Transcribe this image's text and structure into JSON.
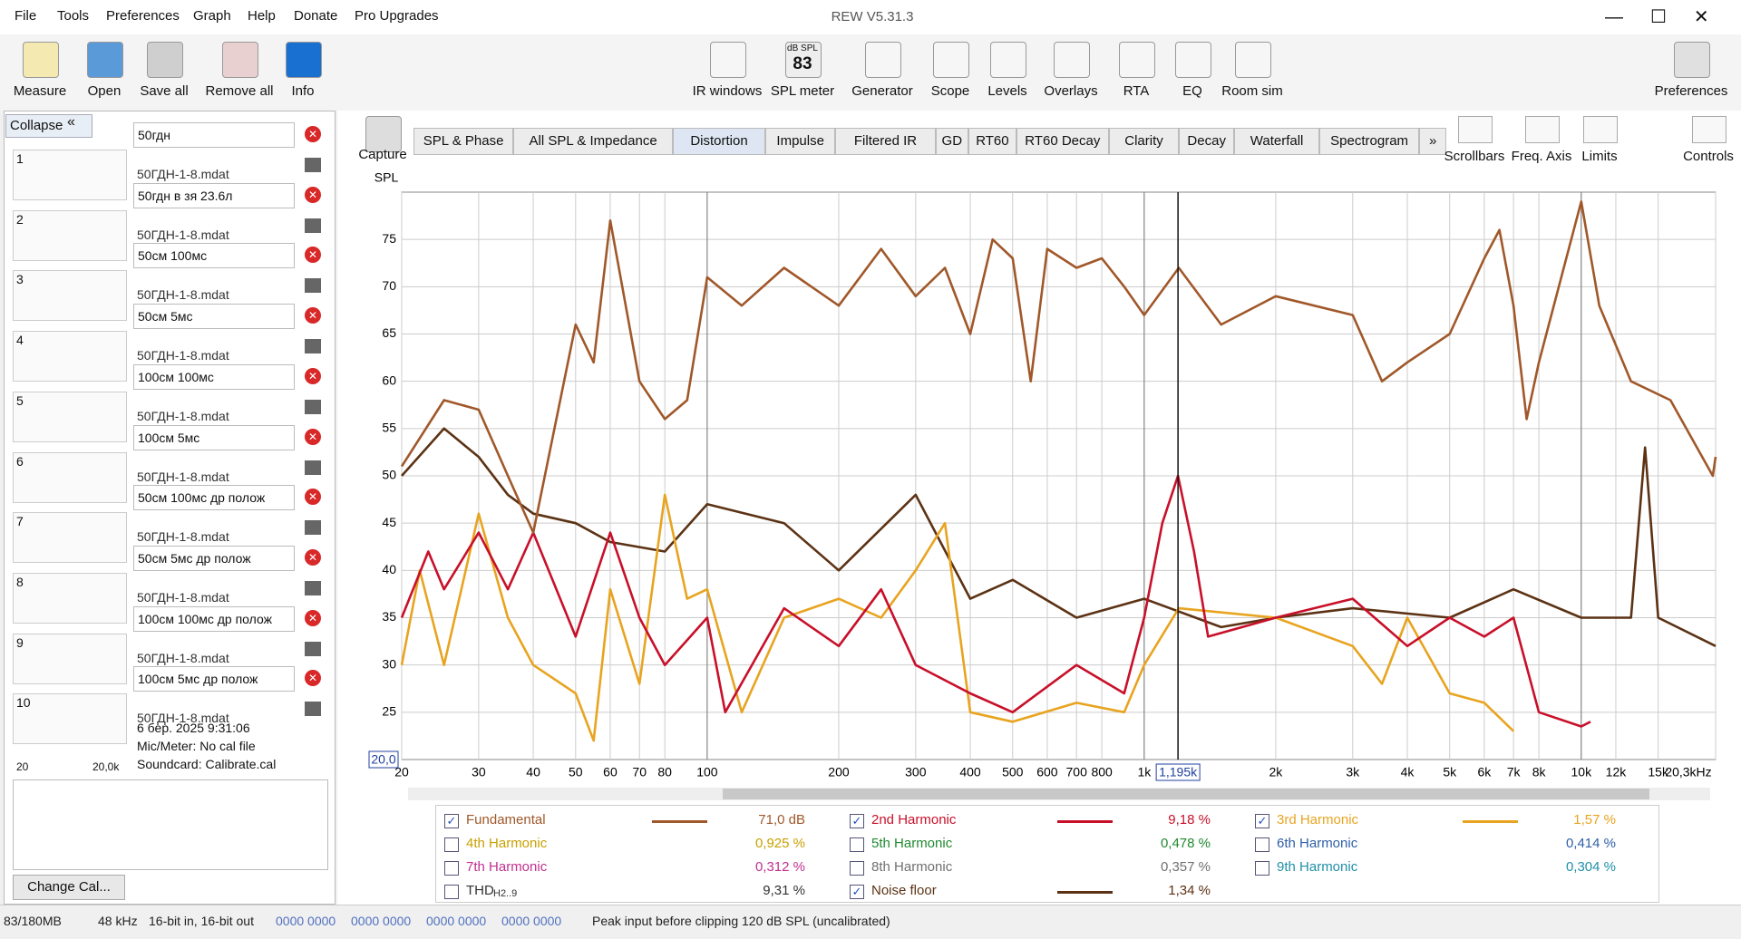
{
  "window": {
    "title": "REW V5.31.3"
  },
  "menu": [
    "File",
    "Tools",
    "Preferences",
    "Graph",
    "Help",
    "Donate",
    "Pro Upgrades"
  ],
  "toolbar_left": [
    "Measure",
    "Open",
    "Save all",
    "Remove all",
    "Info"
  ],
  "toolbar_center": [
    "IR windows",
    "SPL meter",
    "Generator",
    "Scope",
    "Levels",
    "Overlays",
    "RTA",
    "EQ",
    "Room sim"
  ],
  "spl_icon": {
    "unit": "dB SPL",
    "reading": "83"
  },
  "toolbar_right": [
    "Preferences"
  ],
  "panel": {
    "collapse": "Collapse",
    "measurements": [
      {
        "number": "1",
        "name": "50гдн",
        "file": "50ГДН-1-8.mdat",
        "color": "#d02020"
      },
      {
        "number": "2",
        "name": "50гдн в зя 23.6л",
        "file": "50ГДН-1-8.mdat",
        "color": "#20a040"
      },
      {
        "number": "3",
        "name": "50см 100мс",
        "file": "50ГДН-1-8.mdat",
        "color": "#2070d0"
      },
      {
        "number": "4",
        "name": "50см 5мс",
        "file": "50ГДН-1-8.mdat",
        "color": "#e0901a"
      },
      {
        "number": "5",
        "name": "100см 100мс",
        "file": "50ГДН-1-8.mdat",
        "color": "#d0a820"
      },
      {
        "number": "6",
        "name": "100см 5мс",
        "file": "50ГДН-1-8.mdat",
        "color": "#20b090"
      },
      {
        "number": "7",
        "name": "50см 100мс др полож",
        "file": "50ГДН-1-8.mdat",
        "color": "#a040d0"
      },
      {
        "number": "8",
        "name": "50см 5мс др полож",
        "file": "50ГДН-1-8.mdat",
        "color": "#20a0c0"
      },
      {
        "number": "9",
        "name": "100см 100мс др полож",
        "file": "50ГДН-1-8.mdat",
        "color": "#7070e0"
      },
      {
        "number": "10",
        "name": "100см 5мс др полож",
        "file": "50ГДН-1-8.mdat",
        "color": "#e020c0"
      }
    ],
    "details": [
      "6 бер. 2025 9:31:06",
      "Mic/Meter: No cal file",
      "Soundcard: Calibrate.cal"
    ],
    "mini_axis": [
      "20",
      "20,0k"
    ],
    "change_cal": "Change Cal..."
  },
  "capture": "Capture",
  "tabs": [
    "SPL & Phase",
    "All SPL & Impedance",
    "Distortion",
    "Impulse",
    "Filtered IR",
    "GD",
    "RT60",
    "RT60 Decay",
    "Clarity",
    "Decay",
    "Waterfall",
    "Spectrogram"
  ],
  "active_tab": "Distortion",
  "view_tools": [
    "Scrollbars",
    "Freq. Axis",
    "Limits",
    "Controls"
  ],
  "chart_data": {
    "type": "line",
    "y_label": "SPL",
    "log_x": true,
    "grid": true,
    "ylim": [
      20,
      80
    ],
    "yticks": [
      25,
      30,
      35,
      40,
      45,
      50,
      55,
      60,
      65,
      70,
      75
    ],
    "y_min_label": "20,0",
    "xlim": [
      20,
      20300
    ],
    "xticks": [
      20,
      30,
      40,
      50,
      60,
      70,
      80,
      100,
      200,
      300,
      400,
      500,
      600,
      700,
      800,
      {
        "value": 1000,
        "label": "1k"
      },
      {
        "value": 2000,
        "label": "2k"
      },
      {
        "value": 3000,
        "label": "3k"
      },
      {
        "value": 4000,
        "label": "4k"
      },
      {
        "value": 5000,
        "label": "5k"
      },
      {
        "value": 6000,
        "label": "6k"
      },
      {
        "value": 7000,
        "label": "7k"
      },
      {
        "value": 8000,
        "label": "8k"
      },
      {
        "value": 10000,
        "label": "10k"
      },
      {
        "value": 12000,
        "label": "12k"
      },
      {
        "value": 15000,
        "label": "15k"
      },
      {
        "value": 20300,
        "label": "20,3kHz"
      }
    ],
    "major_x": [
      100,
      1000,
      10000
    ],
    "cursor": {
      "value": 1195,
      "label": "1,195k"
    },
    "series": [
      {
        "name": "Noise floor",
        "color": "#5c3214",
        "x": [
          20,
          25,
          30,
          35,
          40,
          50,
          60,
          80,
          100,
          150,
          200,
          300,
          400,
          500,
          700,
          1000,
          1500,
          2000,
          3000,
          5000,
          7000,
          10000,
          13000,
          14000,
          15000,
          20300
        ],
        "values": [
          50,
          55,
          52,
          48,
          46,
          45,
          43,
          42,
          47,
          45,
          40,
          48,
          37,
          39,
          35,
          37,
          34,
          35,
          36,
          35,
          38,
          35,
          35,
          53,
          35,
          32
        ]
      },
      {
        "name": "3rd Harmonic",
        "color": "#e8a420",
        "x": [
          20,
          22,
          25,
          30,
          35,
          40,
          50,
          55,
          60,
          70,
          80,
          90,
          100,
          120,
          150,
          200,
          250,
          300,
          350,
          400,
          500,
          700,
          900,
          1000,
          1200,
          2000,
          3000,
          3500,
          4000,
          5000,
          6000,
          7000
        ],
        "values": [
          30,
          40,
          30,
          46,
          35,
          30,
          27,
          22,
          38,
          28,
          48,
          37,
          38,
          25,
          35,
          37,
          35,
          40,
          45,
          25,
          24,
          26,
          25,
          30,
          36,
          35,
          32,
          28,
          35,
          27,
          26,
          23
        ]
      },
      {
        "name": "2nd Harmonic",
        "color": "#c8102a",
        "x": [
          20,
          23,
          25,
          30,
          35,
          40,
          50,
          60,
          70,
          80,
          100,
          110,
          150,
          200,
          250,
          300,
          400,
          500,
          700,
          900,
          1000,
          1100,
          1195,
          1300,
          1400,
          2000,
          3000,
          4000,
          5000,
          6000,
          7000,
          8000,
          10000,
          10500
        ],
        "values": [
          35,
          42,
          38,
          44,
          38,
          44,
          33,
          44,
          35,
          30,
          35,
          25,
          36,
          32,
          38,
          30,
          27,
          25,
          30,
          27,
          35,
          45,
          50,
          42,
          33,
          35,
          37,
          32,
          35,
          33,
          35,
          25,
          23.5,
          24
        ]
      },
      {
        "name": "Fundamental",
        "color": "#a0582a",
        "x": [
          20,
          25,
          30,
          35,
          40,
          50,
          55,
          60,
          70,
          80,
          90,
          100,
          120,
          150,
          200,
          250,
          300,
          350,
          400,
          450,
          500,
          550,
          600,
          700,
          800,
          900,
          1000,
          1200,
          1500,
          2000,
          3000,
          3500,
          4000,
          5000,
          6000,
          6500,
          7000,
          7500,
          8000,
          10000,
          11000,
          13000,
          16000,
          20000,
          20300
        ],
        "values": [
          51,
          58,
          57,
          50,
          44,
          66,
          62,
          77,
          60,
          56,
          58,
          71,
          68,
          72,
          68,
          74,
          69,
          72,
          65,
          75,
          73,
          60,
          74,
          72,
          73,
          70,
          67,
          72,
          66,
          69,
          67,
          60,
          62,
          65,
          73,
          76,
          68,
          56,
          62,
          79,
          68,
          60,
          58,
          50,
          52
        ]
      }
    ]
  },
  "legend": [
    {
      "name": "Fundamental",
      "value": "71,0 dB",
      "checked": true,
      "color": "#a0582a",
      "line": "#a0582a"
    },
    {
      "name": "2nd Harmonic",
      "value": "9,18 %",
      "checked": true,
      "color": "#c8102a",
      "line": "#c8102a"
    },
    {
      "name": "3rd Harmonic",
      "value": "1,57 %",
      "checked": true,
      "color": "#e8a420",
      "line": "#e8a420"
    },
    {
      "name": "4th Harmonic",
      "value": "0,925 %",
      "checked": false,
      "color": "#c8a000"
    },
    {
      "name": "5th Harmonic",
      "value": "0,478 %",
      "checked": false,
      "color": "#208a30"
    },
    {
      "name": "6th Harmonic",
      "value": "0,414 %",
      "checked": false,
      "color": "#3060a8"
    },
    {
      "name": "7th Harmonic",
      "value": "0,312 %",
      "checked": false,
      "color": "#c03090"
    },
    {
      "name": "8th Harmonic",
      "value": "0,357 %",
      "checked": false,
      "color": "#707070"
    },
    {
      "name": "9th Harmonic",
      "value": "0,304 %",
      "checked": false,
      "color": "#2090a8"
    },
    {
      "name": "THD",
      "sub": "H2..9",
      "value": "9,31 %",
      "checked": false,
      "color": "#333333"
    },
    {
      "name": "Noise floor",
      "value": "1,34 %",
      "checked": true,
      "color": "#5c3214",
      "line": "#5c3214"
    }
  ],
  "status": [
    "83/180MB",
    "48 kHz",
    "16-bit in, 16-bit out",
    "0000 0000",
    "0000 0000",
    "0000 0000",
    "0000 0000",
    "Peak input before clipping 120 dB SPL (uncalibrated)"
  ]
}
